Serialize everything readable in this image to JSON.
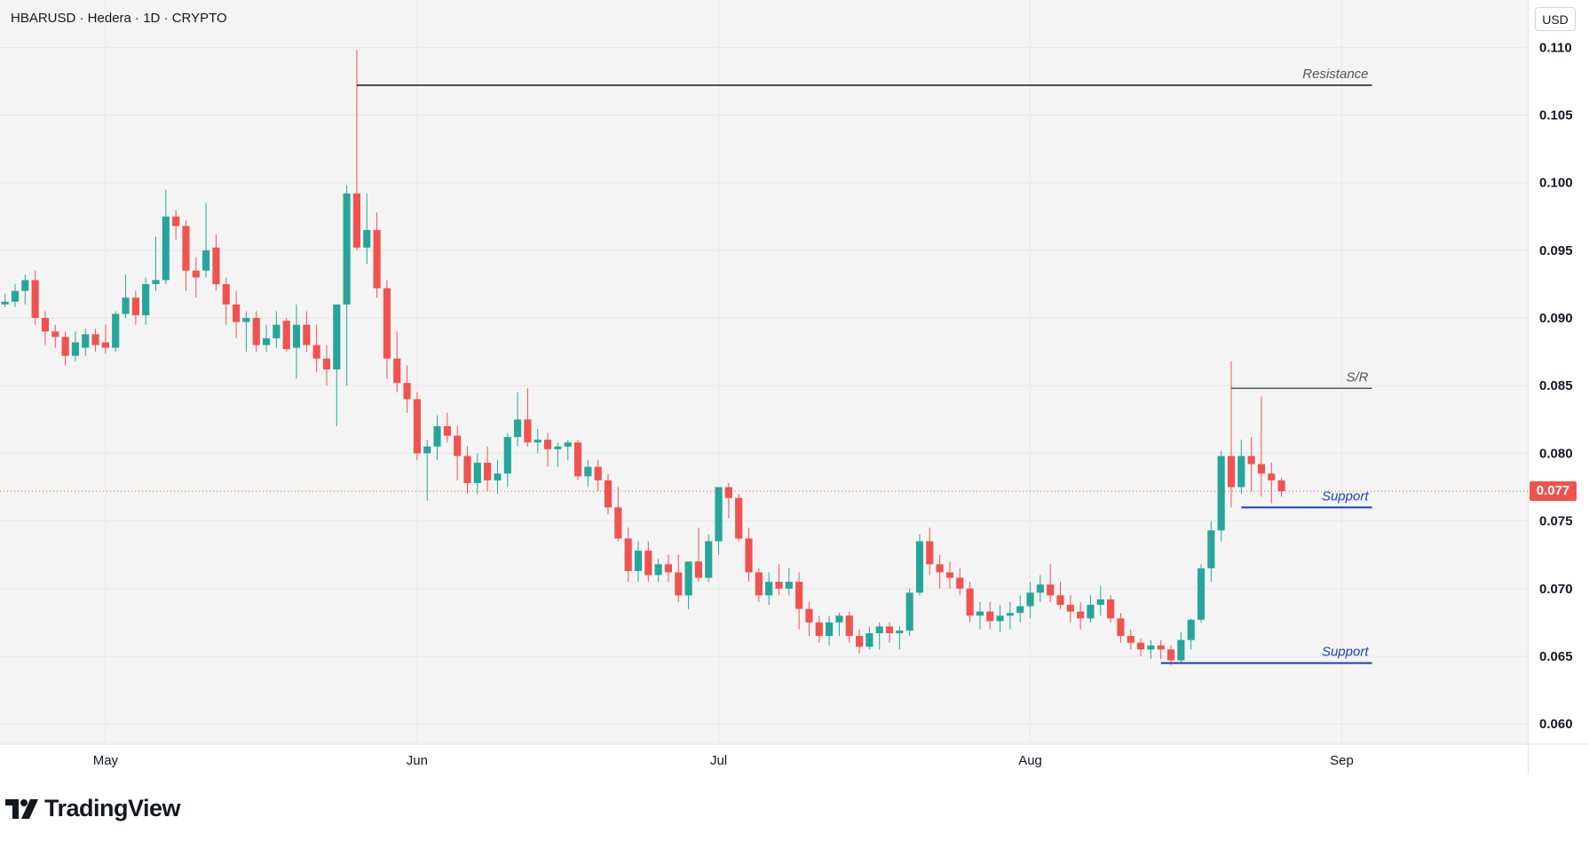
{
  "header": {
    "title": "HBARUSD · Hedera · 1D · CRYPTO"
  },
  "currency_button": "USD",
  "current_price": {
    "label": "0.077",
    "value": 0.0772,
    "color": "#ef5350"
  },
  "branding": {
    "logo_text": "TradingView",
    "icon": "tradingview-logo-icon"
  },
  "colors": {
    "up": "#26a69a",
    "down": "#ef5350",
    "support": "#1e3fbf",
    "resistance": "#131722"
  },
  "chart_data": {
    "type": "candlestick",
    "ylim": [
      0.0585,
      0.1135
    ],
    "yticks": [
      0.06,
      0.065,
      0.07,
      0.075,
      0.08,
      0.085,
      0.09,
      0.095,
      0.1,
      0.105,
      0.11
    ],
    "ytick_labels": [
      "0.060",
      "0.065",
      "0.070",
      "0.075",
      "0.080",
      "0.085",
      "0.090",
      "0.095",
      "0.100",
      "0.105",
      "0.110"
    ],
    "x_start": "2024-04-21",
    "xlim": [
      -0.5,
      151.5
    ],
    "xticks": [
      {
        "label": "May",
        "index": 10
      },
      {
        "label": "Jun",
        "index": 41
      },
      {
        "label": "Jul",
        "index": 71
      },
      {
        "label": "Aug",
        "index": 102
      },
      {
        "label": "Sep",
        "index": 133
      }
    ],
    "candles": [
      [
        0.091,
        0.0918,
        0.0908,
        0.0912
      ],
      [
        0.0912,
        0.0925,
        0.0908,
        0.092
      ],
      [
        0.092,
        0.0932,
        0.091,
        0.0928
      ],
      [
        0.0928,
        0.0935,
        0.0895,
        0.09
      ],
      [
        0.09,
        0.0905,
        0.088,
        0.089
      ],
      [
        0.089,
        0.0895,
        0.0878,
        0.0886
      ],
      [
        0.0886,
        0.089,
        0.0865,
        0.0872
      ],
      [
        0.0872,
        0.089,
        0.0868,
        0.0882
      ],
      [
        0.0878,
        0.0892,
        0.0872,
        0.0888
      ],
      [
        0.0888,
        0.0892,
        0.0875,
        0.088
      ],
      [
        0.0882,
        0.0895,
        0.0874,
        0.0878
      ],
      [
        0.0878,
        0.0905,
        0.0875,
        0.0903
      ],
      [
        0.0903,
        0.0932,
        0.09,
        0.0915
      ],
      [
        0.0915,
        0.092,
        0.0895,
        0.0902
      ],
      [
        0.0902,
        0.093,
        0.0895,
        0.0925
      ],
      [
        0.0925,
        0.096,
        0.092,
        0.0928
      ],
      [
        0.0928,
        0.0995,
        0.0925,
        0.0975
      ],
      [
        0.0975,
        0.098,
        0.0958,
        0.0968
      ],
      [
        0.0968,
        0.0972,
        0.092,
        0.0935
      ],
      [
        0.0935,
        0.0945,
        0.0915,
        0.093
      ],
      [
        0.0935,
        0.0985,
        0.093,
        0.095
      ],
      [
        0.0952,
        0.0962,
        0.092,
        0.0925
      ],
      [
        0.0925,
        0.093,
        0.0895,
        0.091
      ],
      [
        0.091,
        0.092,
        0.0885,
        0.0897
      ],
      [
        0.0897,
        0.0905,
        0.0875,
        0.09
      ],
      [
        0.09,
        0.0905,
        0.0875,
        0.088
      ],
      [
        0.088,
        0.0895,
        0.0875,
        0.0885
      ],
      [
        0.0885,
        0.0905,
        0.0878,
        0.0895
      ],
      [
        0.0898,
        0.09,
        0.0875,
        0.0877
      ],
      [
        0.0878,
        0.091,
        0.0855,
        0.0895
      ],
      [
        0.0895,
        0.0905,
        0.0875,
        0.088
      ],
      [
        0.088,
        0.0895,
        0.086,
        0.087
      ],
      [
        0.087,
        0.088,
        0.085,
        0.0862
      ],
      [
        0.0862,
        0.091,
        0.082,
        0.091
      ],
      [
        0.091,
        0.0998,
        0.085,
        0.0992
      ],
      [
        0.0992,
        0.1098,
        0.095,
        0.0952
      ],
      [
        0.0952,
        0.0992,
        0.094,
        0.0965
      ],
      [
        0.0965,
        0.0978,
        0.0915,
        0.0922
      ],
      [
        0.0922,
        0.0928,
        0.0855,
        0.087
      ],
      [
        0.087,
        0.089,
        0.0845,
        0.0852
      ],
      [
        0.0852,
        0.0865,
        0.083,
        0.084
      ],
      [
        0.084,
        0.0845,
        0.0795,
        0.08
      ],
      [
        0.08,
        0.081,
        0.0765,
        0.0805
      ],
      [
        0.0805,
        0.0828,
        0.0795,
        0.082
      ],
      [
        0.082,
        0.083,
        0.0808,
        0.0813
      ],
      [
        0.0813,
        0.082,
        0.078,
        0.0798
      ],
      [
        0.0798,
        0.0805,
        0.077,
        0.0778
      ],
      [
        0.0778,
        0.08,
        0.077,
        0.0793
      ],
      [
        0.0793,
        0.0805,
        0.0772,
        0.078
      ],
      [
        0.078,
        0.0795,
        0.077,
        0.0785
      ],
      [
        0.0785,
        0.0815,
        0.0775,
        0.0812
      ],
      [
        0.0812,
        0.0845,
        0.0805,
        0.0825
      ],
      [
        0.0825,
        0.0848,
        0.0805,
        0.0808
      ],
      [
        0.0808,
        0.0818,
        0.08,
        0.081
      ],
      [
        0.081,
        0.0815,
        0.079,
        0.0803
      ],
      [
        0.0803,
        0.0808,
        0.079,
        0.0805
      ],
      [
        0.0805,
        0.081,
        0.0795,
        0.0808
      ],
      [
        0.0808,
        0.081,
        0.078,
        0.0783
      ],
      [
        0.0783,
        0.0795,
        0.0775,
        0.079
      ],
      [
        0.079,
        0.0795,
        0.0772,
        0.078
      ],
      [
        0.078,
        0.0785,
        0.0755,
        0.076
      ],
      [
        0.076,
        0.0775,
        0.0735,
        0.0737
      ],
      [
        0.0737,
        0.0745,
        0.0705,
        0.0713
      ],
      [
        0.0713,
        0.0735,
        0.0705,
        0.0728
      ],
      [
        0.0728,
        0.0735,
        0.0705,
        0.071
      ],
      [
        0.071,
        0.0722,
        0.0705,
        0.0718
      ],
      [
        0.0718,
        0.0725,
        0.0705,
        0.0712
      ],
      [
        0.0712,
        0.0725,
        0.069,
        0.0695
      ],
      [
        0.0695,
        0.072,
        0.0685,
        0.072
      ],
      [
        0.072,
        0.0745,
        0.0705,
        0.0708
      ],
      [
        0.0708,
        0.074,
        0.0705,
        0.0735
      ],
      [
        0.0735,
        0.0775,
        0.0725,
        0.0775
      ],
      [
        0.0775,
        0.0778,
        0.0752,
        0.0767
      ],
      [
        0.0767,
        0.077,
        0.0735,
        0.0737
      ],
      [
        0.0737,
        0.0745,
        0.0705,
        0.0712
      ],
      [
        0.0712,
        0.0715,
        0.069,
        0.0695
      ],
      [
        0.0695,
        0.0712,
        0.0688,
        0.0705
      ],
      [
        0.0705,
        0.0718,
        0.0695,
        0.07
      ],
      [
        0.07,
        0.0715,
        0.0695,
        0.0705
      ],
      [
        0.0705,
        0.0712,
        0.067,
        0.0685
      ],
      [
        0.0685,
        0.069,
        0.0665,
        0.0675
      ],
      [
        0.0675,
        0.068,
        0.066,
        0.0665
      ],
      [
        0.0665,
        0.068,
        0.0658,
        0.0675
      ],
      [
        0.0675,
        0.0682,
        0.0665,
        0.068
      ],
      [
        0.068,
        0.0683,
        0.066,
        0.0665
      ],
      [
        0.0665,
        0.067,
        0.0652,
        0.0657
      ],
      [
        0.0657,
        0.0672,
        0.0655,
        0.0667
      ],
      [
        0.0667,
        0.0675,
        0.0655,
        0.0672
      ],
      [
        0.0672,
        0.0675,
        0.066,
        0.0667
      ],
      [
        0.0667,
        0.0672,
        0.0655,
        0.0669
      ],
      [
        0.0669,
        0.07,
        0.0665,
        0.0697
      ],
      [
        0.0697,
        0.074,
        0.0695,
        0.0735
      ],
      [
        0.0735,
        0.0745,
        0.071,
        0.0718
      ],
      [
        0.0718,
        0.0725,
        0.07,
        0.0712
      ],
      [
        0.0712,
        0.072,
        0.07,
        0.0708
      ],
      [
        0.0708,
        0.0715,
        0.0695,
        0.07
      ],
      [
        0.07,
        0.0705,
        0.0675,
        0.068
      ],
      [
        0.068,
        0.069,
        0.067,
        0.0683
      ],
      [
        0.0683,
        0.069,
        0.067,
        0.0676
      ],
      [
        0.0676,
        0.0688,
        0.0668,
        0.068
      ],
      [
        0.068,
        0.069,
        0.067,
        0.0682
      ],
      [
        0.0682,
        0.0695,
        0.0675,
        0.0687
      ],
      [
        0.0687,
        0.0705,
        0.0678,
        0.0697
      ],
      [
        0.0697,
        0.071,
        0.069,
        0.0703
      ],
      [
        0.0703,
        0.0718,
        0.069,
        0.0695
      ],
      [
        0.0695,
        0.0705,
        0.0685,
        0.0688
      ],
      [
        0.0688,
        0.0695,
        0.0675,
        0.0683
      ],
      [
        0.0683,
        0.069,
        0.067,
        0.0678
      ],
      [
        0.0678,
        0.0695,
        0.0675,
        0.0688
      ],
      [
        0.0688,
        0.0702,
        0.068,
        0.0692
      ],
      [
        0.0692,
        0.0695,
        0.0675,
        0.0678
      ],
      [
        0.0678,
        0.0682,
        0.066,
        0.0665
      ],
      [
        0.0665,
        0.067,
        0.0655,
        0.066
      ],
      [
        0.066,
        0.0663,
        0.065,
        0.0655
      ],
      [
        0.0655,
        0.0662,
        0.0648,
        0.0658
      ],
      [
        0.0658,
        0.0662,
        0.0648,
        0.0655
      ],
      [
        0.0655,
        0.0658,
        0.0643,
        0.0647
      ],
      [
        0.0647,
        0.0668,
        0.0645,
        0.0662
      ],
      [
        0.0662,
        0.0678,
        0.0655,
        0.0677
      ],
      [
        0.0677,
        0.0718,
        0.0675,
        0.0715
      ],
      [
        0.0715,
        0.075,
        0.0705,
        0.0743
      ],
      [
        0.0743,
        0.0802,
        0.0735,
        0.0798
      ],
      [
        0.0798,
        0.0868,
        0.076,
        0.0775
      ],
      [
        0.0775,
        0.081,
        0.077,
        0.0798
      ],
      [
        0.0798,
        0.0812,
        0.0772,
        0.0792
      ],
      [
        0.0792,
        0.0842,
        0.0768,
        0.0785
      ],
      [
        0.0785,
        0.0793,
        0.0763,
        0.078
      ],
      [
        0.078,
        0.0782,
        0.0768,
        0.0772
      ]
    ]
  },
  "annotations": {
    "resistance": {
      "label": "Resistance",
      "y": 0.1072,
      "x_from": 35,
      "x_to": 136
    },
    "sr": {
      "label": "S/R",
      "y": 0.0848,
      "x_from": 122,
      "x_to": 136
    },
    "support_upper": {
      "label": "Support",
      "y": 0.076,
      "x_from": 123,
      "x_to": 136
    },
    "support_lower": {
      "label": "Support",
      "y": 0.0645,
      "x_from": 115,
      "x_to": 136
    }
  }
}
